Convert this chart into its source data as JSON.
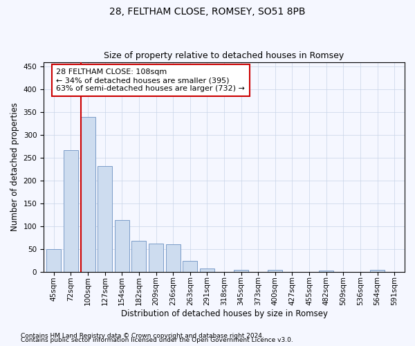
{
  "title": "28, FELTHAM CLOSE, ROMSEY, SO51 8PB",
  "subtitle": "Size of property relative to detached houses in Romsey",
  "xlabel": "Distribution of detached houses by size in Romsey",
  "ylabel": "Number of detached properties",
  "categories": [
    "45sqm",
    "72sqm",
    "100sqm",
    "127sqm",
    "154sqm",
    "182sqm",
    "209sqm",
    "236sqm",
    "263sqm",
    "291sqm",
    "318sqm",
    "345sqm",
    "373sqm",
    "400sqm",
    "427sqm",
    "455sqm",
    "482sqm",
    "509sqm",
    "536sqm",
    "564sqm",
    "591sqm"
  ],
  "values": [
    50,
    267,
    340,
    232,
    114,
    68,
    63,
    61,
    24,
    7,
    0,
    5,
    0,
    4,
    0,
    0,
    3,
    0,
    0,
    4,
    0
  ],
  "bar_color": "#cddcef",
  "bar_edge_color": "#7a9cc8",
  "annotation_text": "28 FELTHAM CLOSE: 108sqm\n← 34% of detached houses are smaller (395)\n63% of semi-detached houses are larger (732) →",
  "annotation_box_facecolor": "#ffffff",
  "annotation_box_edgecolor": "#cc0000",
  "red_line_color": "#cc0000",
  "red_line_x": 1.575,
  "ylim": [
    0,
    460
  ],
  "yticks": [
    0,
    50,
    100,
    150,
    200,
    250,
    300,
    350,
    400,
    450
  ],
  "footnote1": "Contains HM Land Registry data © Crown copyright and database right 2024.",
  "footnote2": "Contains public sector information licensed under the Open Government Licence v3.0.",
  "title_fontsize": 10,
  "subtitle_fontsize": 9,
  "axis_label_fontsize": 8.5,
  "tick_fontsize": 7.5,
  "annot_fontsize": 8,
  "footnote_fontsize": 6.5,
  "bg_color": "#f5f7ff",
  "grid_color": "#c8d4e8"
}
